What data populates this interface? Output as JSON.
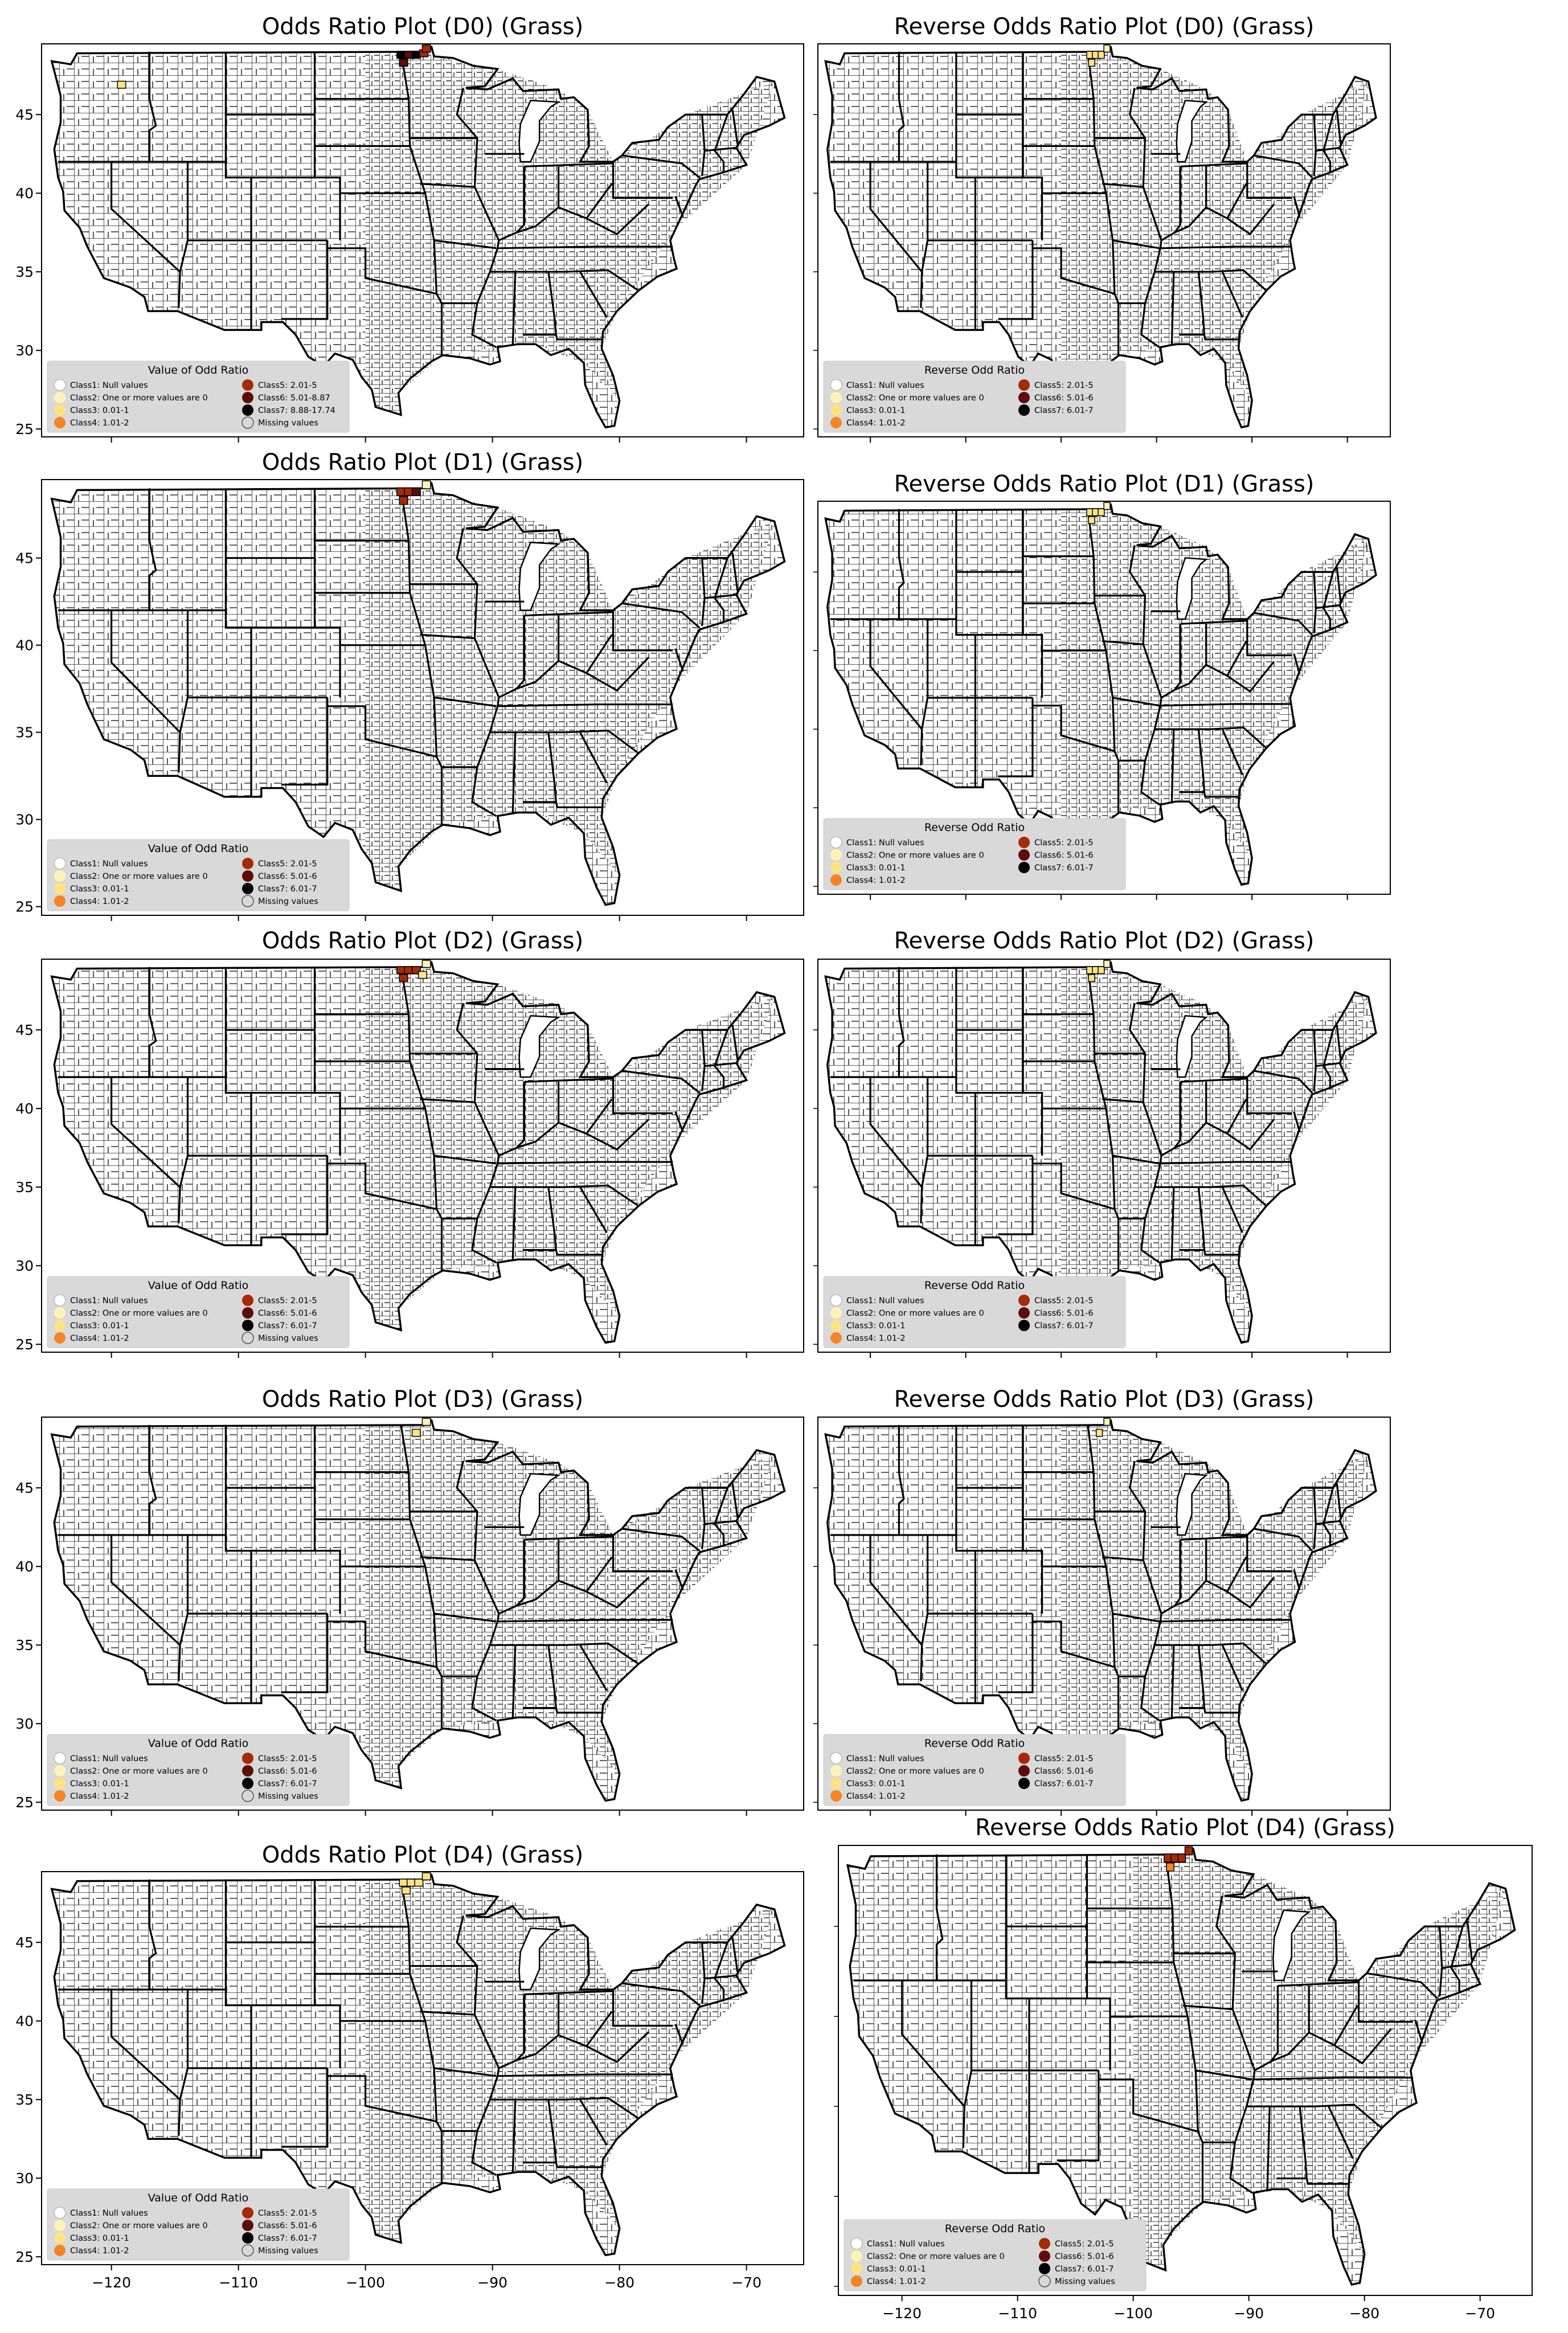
{
  "figure": {
    "layout": "5 rows x 2 columns of choropleth county maps of the contiguous United States"
  },
  "colors": {
    "class1": "#ffffff",
    "class2": "#fff3b8",
    "class3": "#fde383",
    "class4": "#f58424",
    "class5": "#a62a05",
    "class6": "#5e0c0c",
    "class7": "#000000",
    "missing": "#d8d8d8",
    "legend_bg": "#d9d9d9",
    "state_line": "#000000",
    "county_fill": "#ffffff"
  },
  "chart_data": [
    {
      "type": "heatmap",
      "panel": "left",
      "row": 0,
      "title": "Odds Ratio Plot (D0) (Grass)",
      "xlim": [
        -125.5,
        -65.5
      ],
      "ylim": [
        24.5,
        49.5
      ],
      "y_ticks": [
        25,
        30,
        35,
        40,
        45
      ],
      "x_ticks": [],
      "grid": false,
      "legend": {
        "placement": "lower-left",
        "title": "Value of Odd Ratio",
        "items": [
          "Class1: Null values",
          "Class2: One or more values are 0",
          "Class3: 0.01-1",
          "Class4: 1.01-2",
          "Class5: 2.01-5",
          "Class6: 5.01-8.87",
          "Class7: 8.88-17.74",
          "Missing values"
        ]
      },
      "highlighted_counties": [
        {
          "lon": -97.2,
          "lat": 48.8,
          "class": 7
        },
        {
          "lon": -96.6,
          "lat": 48.8,
          "class": 6
        },
        {
          "lon": -96.0,
          "lat": 48.8,
          "class": 7
        },
        {
          "lon": -95.4,
          "lat": 48.9,
          "class": 5
        },
        {
          "lon": -97.0,
          "lat": 48.3,
          "class": 6
        },
        {
          "lon": -95.2,
          "lat": 49.2,
          "class": 5
        },
        {
          "lon": -119.2,
          "lat": 46.9,
          "class": 3
        }
      ]
    },
    {
      "type": "heatmap",
      "panel": "right",
      "row": 0,
      "title": "Reverse Odds Ratio Plot (D0) (Grass)",
      "xlim": [
        -125.5,
        -65.5
      ],
      "ylim": [
        24.5,
        49.5
      ],
      "y_ticks": [],
      "x_ticks": [],
      "grid": false,
      "legend": {
        "placement": "lower-left",
        "title": "Reverse Odd Ratio",
        "items": [
          "Class1: Null values",
          "Class2: One or more values are 0",
          "Class3: 0.01-1",
          "Class4: 1.01-2",
          "Class5: 2.01-5",
          "Class6: 5.01-6",
          "Class7: 6.01-7"
        ]
      },
      "highlighted_counties": [
        {
          "lon": -97.0,
          "lat": 48.8,
          "class": 3
        },
        {
          "lon": -96.4,
          "lat": 48.8,
          "class": 3
        },
        {
          "lon": -95.8,
          "lat": 48.8,
          "class": 3
        },
        {
          "lon": -96.8,
          "lat": 48.3,
          "class": 3
        },
        {
          "lon": -95.2,
          "lat": 49.2,
          "class": 2
        }
      ]
    },
    {
      "type": "heatmap",
      "panel": "left",
      "row": 1,
      "title": "Odds Ratio Plot (D1) (Grass)",
      "xlim": [
        -125.5,
        -65.5
      ],
      "ylim": [
        24.5,
        49.5
      ],
      "y_ticks": [
        25,
        30,
        35,
        40,
        45
      ],
      "x_ticks": [],
      "grid": false,
      "legend": {
        "placement": "lower-left",
        "title": "Value of Odd Ratio",
        "items": [
          "Class1: Null values",
          "Class2: One or more values are 0",
          "Class3: 0.01-1",
          "Class4: 1.01-2",
          "Class5: 2.01-5",
          "Class6: 5.01-6",
          "Class7: 6.01-7",
          "Missing values"
        ]
      },
      "highlighted_counties": [
        {
          "lon": -97.2,
          "lat": 48.8,
          "class": 5
        },
        {
          "lon": -96.6,
          "lat": 48.8,
          "class": 5
        },
        {
          "lon": -96.0,
          "lat": 48.8,
          "class": 6
        },
        {
          "lon": -97.0,
          "lat": 48.3,
          "class": 5
        },
        {
          "lon": -95.2,
          "lat": 49.2,
          "class": 2
        }
      ]
    },
    {
      "type": "heatmap",
      "panel": "right",
      "row": 1,
      "title": "Reverse Odds Ratio Plot (D1) (Grass)",
      "xlim": [
        -125.5,
        -65.5
      ],
      "ylim": [
        24.5,
        49.5
      ],
      "y_ticks": [],
      "x_ticks": [],
      "grid": false,
      "legend": {
        "placement": "lower-left",
        "title": "Reverse Odd Ratio",
        "items": [
          "Class1: Null values",
          "Class2: One or more values are 0",
          "Class3: 0.01-1",
          "Class4: 1.01-2",
          "Class5: 2.01-5",
          "Class6: 5.01-6",
          "Class7: 6.01-7"
        ]
      },
      "highlighted_counties": [
        {
          "lon": -97.0,
          "lat": 48.8,
          "class": 3
        },
        {
          "lon": -96.4,
          "lat": 48.8,
          "class": 3
        },
        {
          "lon": -95.8,
          "lat": 48.8,
          "class": 3
        },
        {
          "lon": -96.8,
          "lat": 48.3,
          "class": 3
        },
        {
          "lon": -95.2,
          "lat": 49.2,
          "class": 2
        }
      ]
    },
    {
      "type": "heatmap",
      "panel": "left",
      "row": 2,
      "title": "Odds Ratio Plot (D2) (Grass)",
      "xlim": [
        -125.5,
        -65.5
      ],
      "ylim": [
        24.5,
        49.5
      ],
      "y_ticks": [
        25,
        30,
        35,
        40,
        45
      ],
      "x_ticks": [],
      "grid": false,
      "legend": {
        "placement": "lower-left",
        "title": "Value of Odd Ratio",
        "items": [
          "Class1: Null values",
          "Class2: One or more values are 0",
          "Class3: 0.01-1",
          "Class4: 1.01-2",
          "Class5: 2.01-5",
          "Class6: 5.01-6",
          "Class7: 6.01-7",
          "Missing values"
        ]
      },
      "highlighted_counties": [
        {
          "lon": -97.2,
          "lat": 48.8,
          "class": 5
        },
        {
          "lon": -96.6,
          "lat": 48.8,
          "class": 5
        },
        {
          "lon": -96.0,
          "lat": 48.8,
          "class": 5
        },
        {
          "lon": -97.0,
          "lat": 48.3,
          "class": 5
        },
        {
          "lon": -95.5,
          "lat": 48.5,
          "class": 3
        },
        {
          "lon": -95.2,
          "lat": 49.2,
          "class": 2
        }
      ]
    },
    {
      "type": "heatmap",
      "panel": "right",
      "row": 2,
      "title": "Reverse Odds Ratio Plot (D2) (Grass)",
      "xlim": [
        -125.5,
        -65.5
      ],
      "ylim": [
        24.5,
        49.5
      ],
      "y_ticks": [],
      "x_ticks": [],
      "grid": false,
      "legend": {
        "placement": "lower-left",
        "title": "Reverse Odd Ratio",
        "items": [
          "Class1: Null values",
          "Class2: One or more values are 0",
          "Class3: 0.01-1",
          "Class4: 1.01-2",
          "Class5: 2.01-5",
          "Class6: 5.01-6",
          "Class7: 6.01-7"
        ]
      },
      "highlighted_counties": [
        {
          "lon": -97.0,
          "lat": 48.8,
          "class": 3
        },
        {
          "lon": -96.4,
          "lat": 48.8,
          "class": 3
        },
        {
          "lon": -95.8,
          "lat": 48.8,
          "class": 3
        },
        {
          "lon": -96.8,
          "lat": 48.3,
          "class": 3
        },
        {
          "lon": -95.2,
          "lat": 49.2,
          "class": 2
        }
      ]
    },
    {
      "type": "heatmap",
      "panel": "left",
      "row": 3,
      "title": "Odds Ratio Plot (D3) (Grass)",
      "xlim": [
        -125.5,
        -65.5
      ],
      "ylim": [
        24.5,
        49.5
      ],
      "y_ticks": [
        25,
        30,
        35,
        40,
        45
      ],
      "x_ticks": [],
      "grid": false,
      "legend": {
        "placement": "lower-left",
        "title": "Value of Odd Ratio",
        "items": [
          "Class1: Null values",
          "Class2: One or more values are 0",
          "Class3: 0.01-1",
          "Class4: 1.01-2",
          "Class5: 2.01-5",
          "Class6: 5.01-6",
          "Class7: 6.01-7",
          "Missing values"
        ]
      },
      "highlighted_counties": [
        {
          "lon": -96.0,
          "lat": 48.5,
          "class": 3
        },
        {
          "lon": -95.2,
          "lat": 49.2,
          "class": 2
        }
      ]
    },
    {
      "type": "heatmap",
      "panel": "right",
      "row": 3,
      "title": "Reverse Odds Ratio Plot (D3) (Grass)",
      "xlim": [
        -125.5,
        -65.5
      ],
      "ylim": [
        24.5,
        49.5
      ],
      "y_ticks": [],
      "x_ticks": [],
      "grid": false,
      "legend": {
        "placement": "lower-left",
        "title": "Reverse Odd Ratio",
        "items": [
          "Class1: Null values",
          "Class2: One or more values are 0",
          "Class3: 0.01-1",
          "Class4: 1.01-2",
          "Class5: 2.01-5",
          "Class6: 5.01-6",
          "Class7: 6.01-7"
        ]
      },
      "highlighted_counties": [
        {
          "lon": -96.0,
          "lat": 48.5,
          "class": 3
        },
        {
          "lon": -95.2,
          "lat": 49.2,
          "class": 2
        }
      ]
    },
    {
      "type": "heatmap",
      "panel": "left",
      "row": 4,
      "title": "Odds Ratio Plot (D4) (Grass)",
      "xlim": [
        -125.5,
        -65.5
      ],
      "ylim": [
        24.5,
        49.5
      ],
      "y_ticks": [
        25,
        30,
        35,
        40,
        45
      ],
      "x_ticks": [
        -120,
        -110,
        -100,
        -90,
        -80,
        -70
      ],
      "grid": false,
      "legend": {
        "placement": "lower-left",
        "title": "Value of Odd Ratio",
        "items": [
          "Class1: Null values",
          "Class2: One or more values are 0",
          "Class3: 0.01-1",
          "Class4: 1.01-2",
          "Class5: 2.01-5",
          "Class6: 5.01-6",
          "Class7: 6.01-7",
          "Missing values"
        ]
      },
      "highlighted_counties": [
        {
          "lon": -97.0,
          "lat": 48.8,
          "class": 3
        },
        {
          "lon": -96.4,
          "lat": 48.8,
          "class": 3
        },
        {
          "lon": -95.8,
          "lat": 48.8,
          "class": 3
        },
        {
          "lon": -96.8,
          "lat": 48.3,
          "class": 3
        },
        {
          "lon": -95.2,
          "lat": 49.2,
          "class": 3
        }
      ]
    },
    {
      "type": "heatmap",
      "panel": "right",
      "row": 4,
      "title": "Reverse Odds Ratio Plot (D4) (Grass)",
      "xlim": [
        -125.5,
        -65.5
      ],
      "ylim": [
        24.5,
        49.5
      ],
      "y_ticks": [],
      "x_ticks": [
        -120,
        -110,
        -100,
        -90,
        -80,
        -70
      ],
      "grid": false,
      "legend": {
        "placement": "lower-left",
        "title": "Reverse Odd Ratio",
        "items": [
          "Class1: Null values",
          "Class2: One or more values are 0",
          "Class3: 0.01-1",
          "Class4: 1.01-2",
          "Class5: 2.01-5",
          "Class6: 5.01-6",
          "Class7: 6.01-7",
          "Missing values"
        ]
      },
      "highlighted_counties": [
        {
          "lon": -97.0,
          "lat": 48.8,
          "class": 5
        },
        {
          "lon": -96.4,
          "lat": 48.8,
          "class": 5
        },
        {
          "lon": -95.8,
          "lat": 48.8,
          "class": 5
        },
        {
          "lon": -96.8,
          "lat": 48.3,
          "class": 4
        },
        {
          "lon": -95.2,
          "lat": 49.2,
          "class": 5
        }
      ]
    }
  ]
}
